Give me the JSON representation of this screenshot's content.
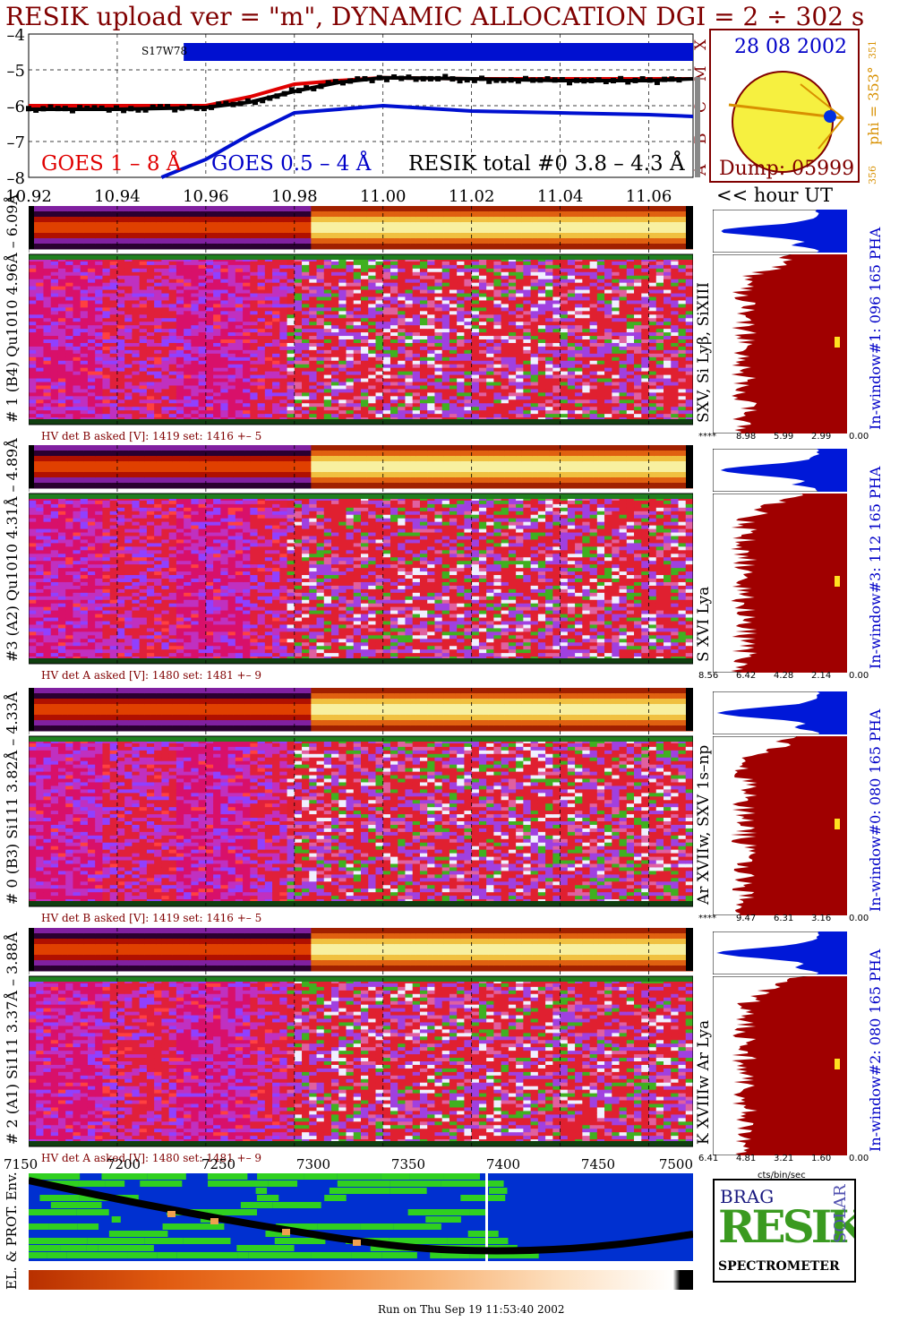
{
  "header": {
    "title": "RESIK upload ver = \"m\", DYNAMIC ALLOCATION  DGI =   2 ÷ 302 s",
    "footer": "Run on Thu Sep 19 11:53:40 2002"
  },
  "goes_panel": {
    "legend_goes_long": "GOES 1 – 8 Å",
    "legend_goes_short": "GOES 0.5 – 4 Å",
    "legend_resik": "RESIK total #0  3.8 – 4.3 Å",
    "tag": "S17W78",
    "class_letters": [
      "X",
      "M",
      "C",
      "B",
      "A"
    ],
    "colors": {
      "goes_long": "#e00000",
      "goes_short": "#0010d0",
      "resik": "#000000"
    }
  },
  "sun_panel": {
    "date": "28 08 2002",
    "phi_label": "phi = 353°",
    "phi_value_top": "351",
    "phi_value_bottom": "356",
    "dump": "Dump: 05999"
  },
  "hour_axis": {
    "ticks": [
      "10.92",
      "10.94",
      "10.96",
      "10.98",
      "11.00",
      "11.02",
      "11.04",
      "11.06"
    ],
    "unit_label": "<< hour UT"
  },
  "channels": [
    {
      "left_label": "# 1 (B4) Qu1010 4.96Å – 6.09Å",
      "right_label": "SXV, Si Lyβ, SiXIII",
      "hv_text": "HV det B asked [V]:  1419 set:  1416  +–   5",
      "window_label": "In-window#1:  096 165 PHA",
      "pha_ticks": [
        "****",
        "8.98",
        "5.99",
        "2.99",
        "0.00"
      ]
    },
    {
      "left_label": "#3 (A2) Qu1010  4.31Å – 4.89Å",
      "right_label": "S XVI Lya",
      "hv_text": "HV det A asked [V]:  1480 set:  1481  +–   9",
      "window_label": "In-window#3:  112 165 PHA",
      "pha_ticks": [
        "8.56",
        "6.42",
        "4.28",
        "2.14",
        "0.00"
      ]
    },
    {
      "left_label": "# 0 (B3) Si111  3.82Å – 4.33Å",
      "right_label": "Ar XVIIw,  SXV 1s–np",
      "hv_text": "HV det B asked [V]:  1419 set:  1416  +–   5",
      "window_label": "In-window#0:  080 165 PHA",
      "pha_ticks": [
        "****",
        "9.47",
        "6.31",
        "3.16",
        "0.00"
      ]
    },
    {
      "left_label": "# 2 (A1) Si111  3.37Å – 3.88Å",
      "right_label": "K XVIIIw  Ar Lya",
      "hv_text": "HV det A asked [V]:  1480 set:  1481  +–   9",
      "window_label": "In-window#2:  080 165 PHA",
      "pha_ticks": [
        "6.41",
        "4.81",
        "3.21",
        "1.60",
        "0.00"
      ]
    }
  ],
  "seconds_axis": {
    "ticks": [
      "7150",
      "7200",
      "7250",
      "7300",
      "7350",
      "7400",
      "7450",
      "7500"
    ]
  },
  "pha_axis_label": "cts/bin/sec",
  "env_panel": {
    "label": "EL. & PROT. Env."
  },
  "logo": {
    "top_letters": "BRAG",
    "main": "RESIK",
    "side": "SOLAR",
    "bottom": "SPECTROMETER"
  },
  "chart_data": [
    {
      "type": "line",
      "title": "RESIK upload ver = \"m\", DYNAMIC ALLOCATION  DGI =   2 ÷ 302 s",
      "xlabel": "<< hour UT",
      "ylabel": "",
      "ylim": [
        -8,
        -4
      ],
      "xlim": [
        10.92,
        11.07
      ],
      "x_ticks": [
        10.92,
        10.94,
        10.96,
        10.98,
        11.0,
        11.02,
        11.04,
        11.06
      ],
      "y_ticks": [
        -4,
        -5,
        -6,
        -7,
        -8
      ],
      "series": [
        {
          "name": "GOES 1 – 8 Å",
          "color": "#e00000",
          "x": [
            10.92,
            10.94,
            10.96,
            10.97,
            10.98,
            10.99,
            11.0,
            11.02,
            11.04,
            11.06,
            11.07
          ],
          "y": [
            -6.0,
            -6.0,
            -6.0,
            -5.75,
            -5.4,
            -5.3,
            -5.22,
            -5.25,
            -5.25,
            -5.25,
            -5.25
          ]
        },
        {
          "name": "GOES 0.5 – 4 Å",
          "color": "#0010d0",
          "x": [
            10.95,
            10.96,
            10.97,
            10.98,
            11.0,
            11.02,
            11.04,
            11.06,
            11.07
          ],
          "y": [
            -8.0,
            -7.5,
            -6.8,
            -6.2,
            -6.0,
            -6.15,
            -6.2,
            -6.25,
            -6.3
          ]
        },
        {
          "name": "RESIK total #0  3.8 – 4.3 Å",
          "color": "#000000",
          "x": [
            10.92,
            10.94,
            10.96,
            10.97,
            10.98,
            10.99,
            11.0,
            11.02,
            11.04,
            11.06,
            11.07
          ],
          "y": [
            -6.1,
            -6.1,
            -6.05,
            -5.9,
            -5.6,
            -5.35,
            -5.22,
            -5.25,
            -5.3,
            -5.3,
            -5.25
          ]
        }
      ]
    }
  ]
}
